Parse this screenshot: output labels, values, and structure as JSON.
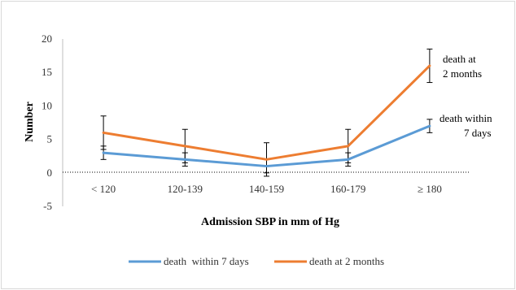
{
  "chart_data": {
    "type": "line",
    "categories": [
      "< 120",
      "120-139",
      "140-159",
      "160-179",
      "≥ 180"
    ],
    "series": [
      {
        "name": "death  within 7 days",
        "values": [
          3,
          2,
          1,
          2,
          7
        ],
        "error": [
          1,
          1,
          1,
          1,
          1
        ],
        "color": "#5b9bd5"
      },
      {
        "name": "death at 2 months",
        "values": [
          6,
          4,
          2,
          4,
          16
        ],
        "error": [
          2.5,
          2.5,
          2.5,
          2.5,
          2.5
        ],
        "color": "#ed7d31"
      }
    ],
    "xlabel": "Admission SBP in mm of Hg",
    "ylabel": "Number",
    "ylim": [
      -5,
      20
    ],
    "yticks": [
      "-5",
      "0",
      "5",
      "10",
      "15",
      "20"
    ],
    "grid": false,
    "legend": "bottom",
    "annotations": [
      {
        "lines": [
          "death at",
          "2 months"
        ]
      },
      {
        "lines": [
          "death  within",
          "7 days"
        ]
      }
    ]
  }
}
